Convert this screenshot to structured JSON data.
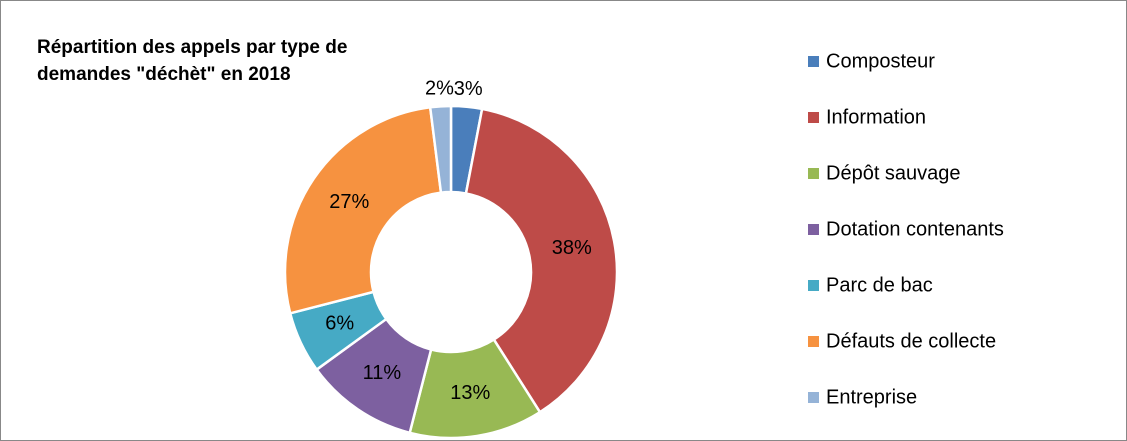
{
  "chart_data": {
    "type": "donut",
    "title": "Répartition des appels par type de demandes \"déchèt\" en 2018",
    "categories": [
      "Composteur",
      "Information",
      "Dépôt sauvage",
      "Dotation contenants",
      "Parc de bac",
      "Défauts de collecte",
      "Entreprise"
    ],
    "values": [
      3,
      38,
      13,
      11,
      6,
      27,
      2
    ],
    "value_labels": [
      "3%",
      "38%",
      "13%",
      "11%",
      "6%",
      "27%",
      "2%"
    ],
    "colors": [
      "#4a7ebb",
      "#be4b48",
      "#98b954",
      "#7d60a0",
      "#46aac5",
      "#f69240",
      "#95b3d7"
    ],
    "legend": "right"
  }
}
